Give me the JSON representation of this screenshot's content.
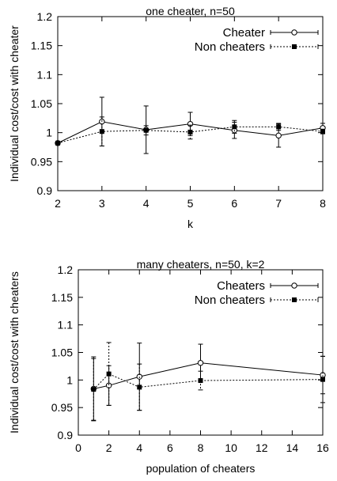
{
  "chart_data": [
    {
      "type": "line",
      "title": "one cheater, n=50",
      "xlabel": "k",
      "ylabel": "Individual cost/cost with cheater",
      "xlim": [
        2,
        8
      ],
      "ylim": [
        0.9,
        1.2
      ],
      "xticks": [
        2,
        3,
        4,
        5,
        6,
        7,
        8
      ],
      "xtick_labels": [
        "2",
        "3",
        "4",
        "5",
        "6",
        "7",
        "8"
      ],
      "yticks": [
        0.9,
        0.95,
        1.0,
        1.05,
        1.1,
        1.15,
        1.2
      ],
      "ytick_labels": [
        "0.9",
        "0.95",
        "1",
        "1.05",
        "1.1",
        "1.15",
        "1.2"
      ],
      "legend_position": "top-right",
      "series": [
        {
          "name": "Cheater",
          "marker": "open-circle",
          "style": "solid",
          "x": [
            2,
            3,
            4,
            5,
            6,
            7,
            8
          ],
          "y": [
            0.982,
            1.019,
            1.005,
            1.015,
            1.004,
            0.995,
            1.008
          ],
          "err": [
            0.0,
            0.042,
            0.041,
            0.02,
            0.014,
            0.02,
            0.008
          ]
        },
        {
          "name": "Non cheaters",
          "marker": "filled-square",
          "style": "dotted",
          "x": [
            2,
            3,
            4,
            5,
            6,
            7,
            8
          ],
          "y": [
            0.982,
            1.002,
            1.004,
            1.001,
            1.01,
            1.01,
            1.002
          ],
          "err": [
            0.0,
            0.025,
            0.008,
            0.012,
            0.011,
            0.006,
            0.004
          ]
        }
      ]
    },
    {
      "type": "line",
      "title": "many cheaters, n=50, k=2",
      "xlabel": "population of cheaters",
      "ylabel": "Individual cost/cost with cheaters",
      "xlim": [
        0,
        16
      ],
      "ylim": [
        0.9,
        1.2
      ],
      "xticks": [
        0,
        2,
        4,
        6,
        8,
        10,
        12,
        14,
        16
      ],
      "xtick_labels": [
        "0",
        "2",
        "4",
        "6",
        "8",
        "10",
        "12",
        "14",
        "16"
      ],
      "yticks": [
        0.9,
        0.95,
        1.0,
        1.05,
        1.1,
        1.15,
        1.2
      ],
      "ytick_labels": [
        "0.9",
        "0.95",
        "1",
        "1.05",
        "1.1",
        "1.15",
        "1.2"
      ],
      "legend_position": "top-right",
      "series": [
        {
          "name": "Cheaters",
          "marker": "open-circle",
          "style": "solid",
          "x": [
            1,
            2,
            4,
            8,
            16
          ],
          "y": [
            0.984,
            0.99,
            1.006,
            1.031,
            1.009
          ],
          "err": [
            0.058,
            0.036,
            0.061,
            0.034,
            0.034
          ]
        },
        {
          "name": "Non cheaters",
          "marker": "filled-square",
          "style": "dotted",
          "x": [
            1,
            2,
            4,
            8,
            16
          ],
          "y": [
            0.983,
            1.011,
            0.987,
            0.999,
            1.001
          ],
          "err": [
            0.056,
            0.057,
            0.042,
            0.017,
            0.042
          ]
        }
      ]
    }
  ]
}
